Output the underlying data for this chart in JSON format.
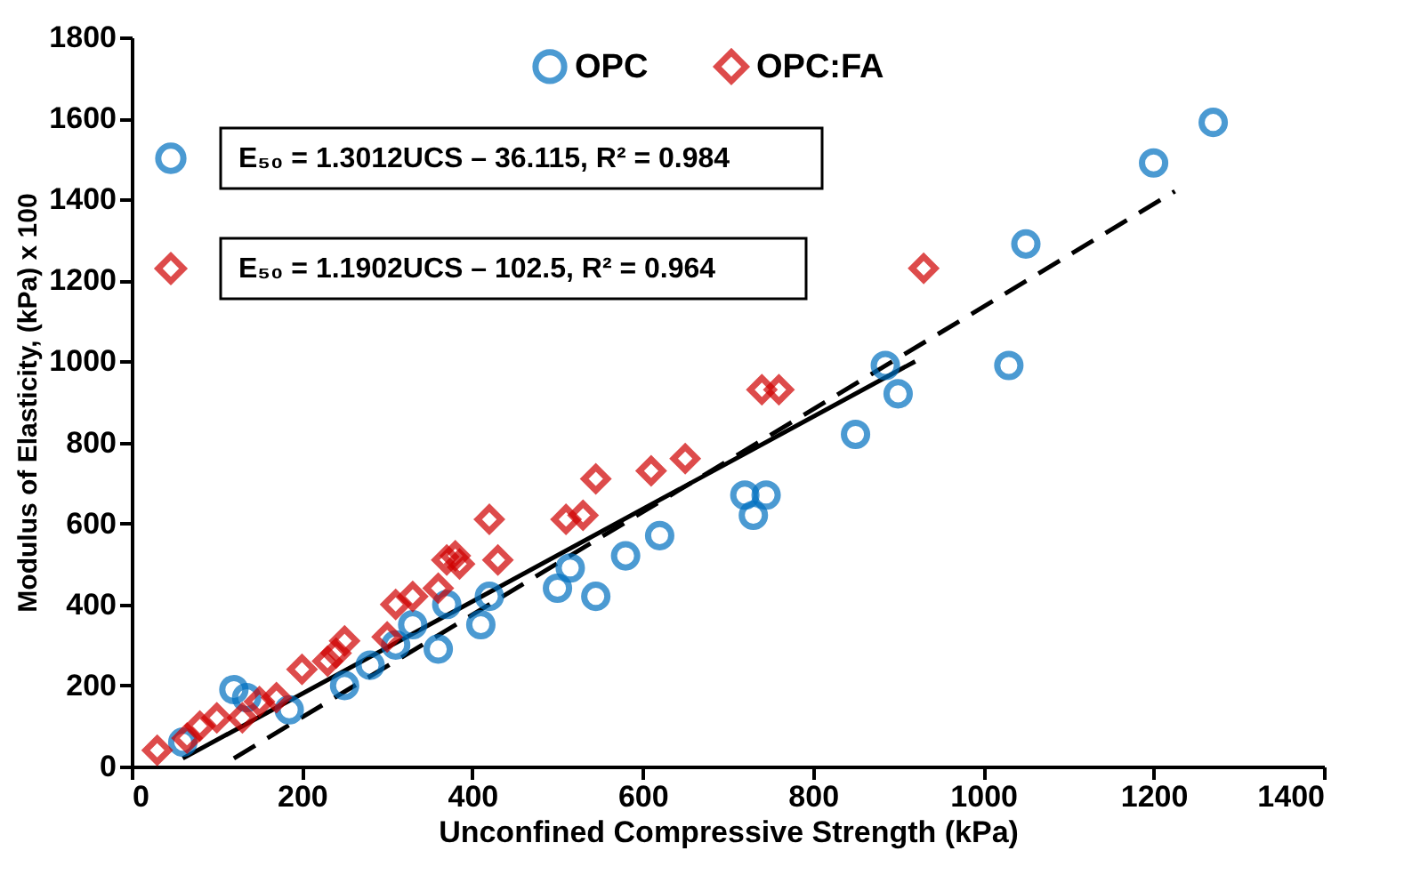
{
  "chart_data": {
    "type": "scatter",
    "xlabel": "Unconfined Compressive Strength (kPa)",
    "ylabel": "Modulus of Elasticity, (kPa) x 100",
    "xlim": [
      0,
      1400
    ],
    "xticks": [
      0,
      200,
      400,
      600,
      800,
      {
        "value": 1000,
        "label": "1000"
      },
      {
        "value": 1200,
        "label": "1200"
      },
      {
        "value": 1400,
        "label": "1400"
      }
    ],
    "ylim": [
      0,
      1800
    ],
    "yticks": [
      0,
      200,
      400,
      600,
      800,
      {
        "value": 1000,
        "label": "1000"
      },
      {
        "value": 1200,
        "label": "1200"
      },
      {
        "value": 1400,
        "label": "1400"
      },
      {
        "value": 1600,
        "label": "1600"
      },
      {
        "value": 1800,
        "label": "1800"
      }
    ],
    "grid": false,
    "legend": "top",
    "series": [
      {
        "name": "OPC",
        "color": "#0070c0",
        "marker": "circle",
        "x": [
          60,
          120,
          135,
          185,
          250,
          280,
          310,
          330,
          360,
          370,
          410,
          420,
          500,
          515,
          545,
          580,
          620,
          720,
          730,
          745,
          850,
          885,
          900,
          1030,
          1050,
          1200,
          1270
        ],
        "values": [
          60,
          190,
          170,
          140,
          200,
          250,
          300,
          350,
          290,
          400,
          350,
          420,
          440,
          490,
          420,
          520,
          570,
          670,
          620,
          670,
          820,
          990,
          920,
          990,
          1290,
          1490,
          1590
        ]
      },
      {
        "name": "OPC:FA",
        "color": "#d00000",
        "marker": "diamond",
        "x": [
          30,
          65,
          80,
          100,
          130,
          150,
          170,
          200,
          230,
          240,
          250,
          300,
          310,
          330,
          360,
          370,
          380,
          385,
          420,
          430,
          510,
          530,
          545,
          610,
          650,
          740,
          760,
          930
        ],
        "values": [
          40,
          70,
          100,
          120,
          120,
          160,
          170,
          240,
          260,
          280,
          310,
          320,
          400,
          420,
          440,
          510,
          520,
          500,
          610,
          510,
          610,
          620,
          710,
          730,
          760,
          930,
          930,
          1230
        ]
      },
      {
        "type": "line",
        "color": "#000000",
        "line_style": "solid",
        "x": [
          60,
          920
        ],
        "values": [
          20,
          1000
        ]
      },
      {
        "type": "line",
        "color": "#000000",
        "line_style": "dashed",
        "x": [
          120,
          1225
        ],
        "values": [
          20,
          1420
        ]
      }
    ],
    "annotations": [
      "E₅₀ = 1.3012UCS – 36.115,  R² = 0.984",
      "E₅₀ = 1.1902UCS – 102.5,  R² = 0.964"
    ]
  }
}
